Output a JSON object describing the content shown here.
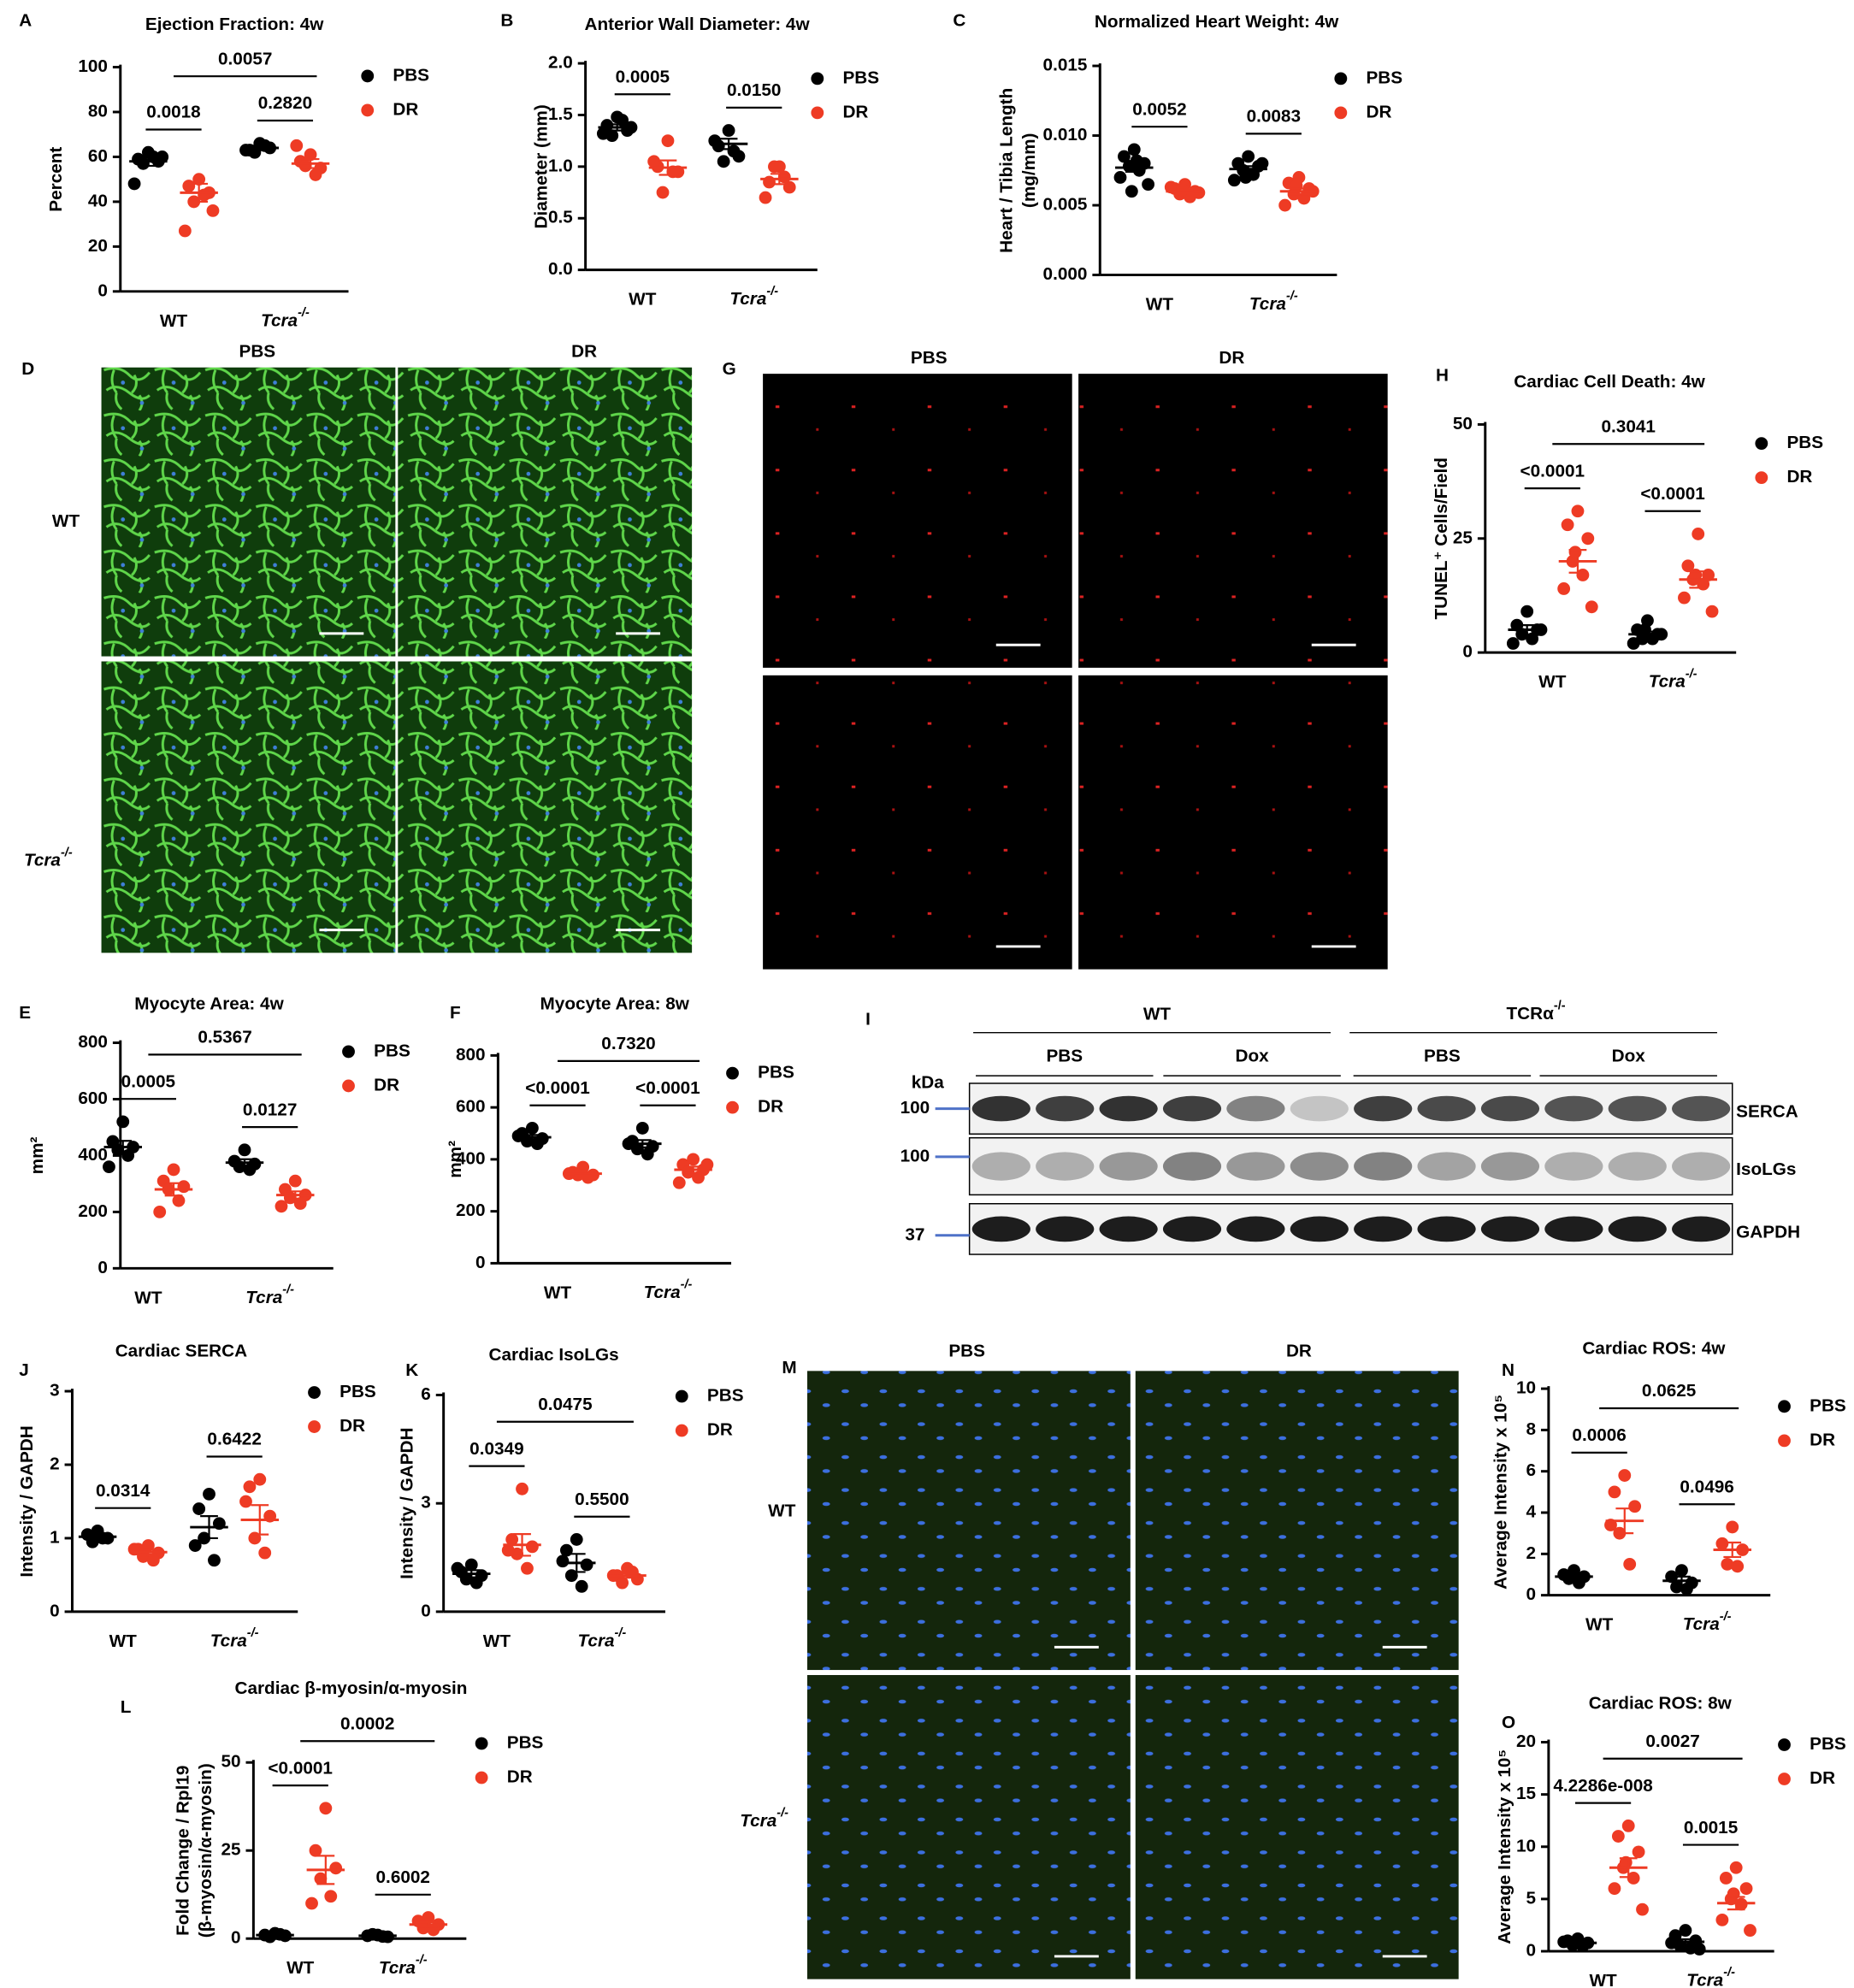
{
  "chart_data": [
    {
      "type": "dotplot",
      "panel": "A",
      "title": "Ejection Fraction: 4w",
      "ylabel": "Percent",
      "categories": [
        "WT",
        "Tcra-/-"
      ],
      "ylim": [
        0,
        100
      ],
      "yticks": [
        0,
        20,
        40,
        60,
        80,
        100
      ],
      "series": [
        {
          "name": "PBS",
          "color": "#000000",
          "values": [
            [
              62,
              59,
              58,
              57,
              60,
              48,
              60
            ],
            [
              66,
              63,
              64,
              62,
              65,
              63
            ]
          ],
          "mean": [
            58,
            64
          ],
          "sem": [
            2,
            1
          ]
        },
        {
          "name": "DR",
          "color": "#ee3b24",
          "values": [
            [
              50,
              47,
              44,
              40,
              43,
              27,
              36
            ],
            [
              61,
              58,
              55,
              56,
              52,
              65
            ]
          ],
          "mean": [
            44,
            57
          ],
          "sem": [
            4,
            2
          ]
        }
      ],
      "annotations": [
        "0.0018",
        "0.2820",
        "0.0057"
      ]
    },
    {
      "type": "dotplot",
      "panel": "B",
      "title": "Anterior Wall Diameter: 4w",
      "ylabel": "Diameter (mm)",
      "categories": [
        "WT",
        "Tcra-/-"
      ],
      "ylim": [
        0,
        2
      ],
      "yticks": [
        {
          "value": 0,
          "label": "0.0"
        },
        0.5,
        {
          "value": 1,
          "label": "1.0"
        },
        1.5,
        {
          "value": 2,
          "label": "2.0"
        }
      ],
      "series": [
        {
          "name": "PBS",
          "color": "#000000",
          "values": [
            [
              1.48,
              1.4,
              1.35,
              1.3,
              1.45,
              1.32,
              1.38
            ],
            [
              1.35,
              1.2,
              1.1,
              1.05,
              1.15,
              1.25
            ]
          ],
          "mean": [
            1.38,
            1.22
          ],
          "sem": [
            0.03,
            0.05
          ]
        },
        {
          "name": "DR",
          "color": "#ee3b24",
          "values": [
            [
              1.25,
              1.0,
              0.95,
              0.75,
              0.95,
              1.05
            ],
            [
              1.0,
              0.85,
              0.8,
              1.0,
              0.9,
              0.7
            ]
          ],
          "mean": [
            0.99,
            0.88
          ],
          "sem": [
            0.07,
            0.05
          ]
        }
      ],
      "annotations": [
        "0.0005",
        "0.0150"
      ]
    },
    {
      "type": "dotplot",
      "panel": "C",
      "title": "Normalized Heart Weight: 4w",
      "ylabel": [
        "Heart / Tibia Length",
        "(mg/mm)"
      ],
      "categories": [
        "WT",
        "Tcra-/-"
      ],
      "ylim": [
        0,
        0.015
      ],
      "yticks": [
        {
          "value": 0,
          "label": "0.000"
        },
        {
          "value": 0.005,
          "label": "0.005"
        },
        {
          "value": 0.01,
          "label": "0.010"
        },
        {
          "value": 0.015,
          "label": "0.015"
        }
      ],
      "series": [
        {
          "name": "PBS",
          "color": "#000000",
          "values": [
            [
              0.009,
              0.0085,
              0.008,
              0.0078,
              0.0075,
              0.007,
              0.0065,
              0.006,
              0.0082
            ],
            [
              0.0085,
              0.008,
              0.0078,
              0.0075,
              0.0072,
              0.0068,
              0.008,
              0.007
            ]
          ],
          "mean": [
            0.0077,
            0.0076
          ],
          "sem": [
            0.0003,
            0.0002
          ]
        },
        {
          "name": "DR",
          "color": "#ee3b24",
          "values": [
            [
              0.0065,
              0.0062,
              0.006,
              0.0058,
              0.0056,
              0.0063,
              0.0059,
              0.0061
            ],
            [
              0.007,
              0.0066,
              0.0062,
              0.0058,
              0.0055,
              0.005,
              0.006,
              0.0064
            ]
          ],
          "mean": [
            0.006,
            0.006
          ],
          "sem": [
            0.0001,
            0.0002
          ]
        }
      ],
      "annotations": [
        "0.0052",
        "0.0083"
      ]
    },
    {
      "type": "dotplot",
      "panel": "H",
      "title": "Cardiac Cell Death: 4w",
      "ylabel": "TUNEL⁺ Cells/Field",
      "categories": [
        "WT",
        "Tcra-/-"
      ],
      "ylim": [
        0,
        50
      ],
      "yticks": [
        0,
        25,
        50
      ],
      "series": [
        {
          "name": "PBS",
          "color": "#000000",
          "values": [
            [
              9,
              6,
              5,
              4,
              3,
              2,
              5
            ],
            [
              7,
              5,
              4,
              3,
              3,
              2,
              4,
              5
            ]
          ],
          "mean": [
            5,
            4
          ],
          "sem": [
            1,
            0.6
          ]
        },
        {
          "name": "DR",
          "color": "#ee3b24",
          "values": [
            [
              31,
              28,
              25,
              20,
              17,
              14,
              10,
              22
            ],
            [
              26,
              19,
              17,
              16,
              15,
              12,
              9,
              17
            ]
          ],
          "mean": [
            20,
            16
          ],
          "sem": [
            2.5,
            1.8
          ]
        }
      ],
      "annotations": [
        "<0.0001",
        "<0.0001",
        "0.3041"
      ]
    },
    {
      "type": "dotplot",
      "panel": "E",
      "title": "Myocyte Area: 4w",
      "ylabel": "mm²",
      "categories": [
        "WT",
        "Tcra-/-"
      ],
      "ylim": [
        0,
        800
      ],
      "yticks": [
        0,
        200,
        400,
        600,
        800
      ],
      "series": [
        {
          "name": "PBS",
          "color": "#000000",
          "values": [
            [
              520,
              450,
              430,
              420,
              400,
              360
            ],
            [
              420,
              380,
              370,
              360,
              350
            ]
          ],
          "mean": [
            430,
            375
          ],
          "sem": [
            22,
            12
          ]
        },
        {
          "name": "DR",
          "color": "#ee3b24",
          "values": [
            [
              350,
              310,
              290,
              280,
              240,
              200
            ],
            [
              310,
              280,
              260,
              250,
              230,
              220
            ]
          ],
          "mean": [
            280,
            260
          ],
          "sem": [
            22,
            13
          ]
        }
      ],
      "annotations": [
        "0.0005",
        "0.0127",
        "0.5367"
      ]
    },
    {
      "type": "dotplot",
      "panel": "F",
      "title": "Myocyte Area: 8w",
      "ylabel": "mm²",
      "categories": [
        "WT",
        "Tcra-/-"
      ],
      "ylim": [
        0,
        800
      ],
      "yticks": [
        0,
        200,
        400,
        600,
        800
      ],
      "series": [
        {
          "name": "PBS",
          "color": "#000000",
          "values": [
            [
              520,
              500,
              480,
              470,
              460,
              490
            ],
            [
              520,
              470,
              450,
              440,
              420,
              460
            ]
          ],
          "mean": [
            485,
            460
          ],
          "sem": [
            9,
            14
          ]
        },
        {
          "name": "DR",
          "color": "#ee3b24",
          "values": [
            [
              370,
              350,
              340,
              340,
              330,
              345
            ],
            [
              400,
              380,
              360,
              350,
              330,
              310,
              380
            ]
          ],
          "mean": [
            345,
            360
          ],
          "sem": [
            6,
            12
          ]
        }
      ],
      "annotations": [
        "<0.0001",
        "<0.0001",
        "0.7320"
      ]
    },
    {
      "type": "dotplot",
      "panel": "J",
      "title": "Cardiac SERCA",
      "ylabel": "Intensity / GAPDH",
      "categories": [
        "WT",
        "Tcra-/-"
      ],
      "ylim": [
        0,
        3
      ],
      "yticks": [
        0,
        1,
        2,
        3
      ],
      "series": [
        {
          "name": "PBS",
          "color": "#000000",
          "values": [
            [
              1.1,
              1.05,
              1.0,
              0.95,
              1.0
            ],
            [
              1.6,
              1.4,
              1.2,
              1.0,
              0.7,
              0.9
            ]
          ],
          "mean": [
            1.02,
            1.15
          ],
          "sem": [
            0.03,
            0.15
          ]
        },
        {
          "name": "DR",
          "color": "#ee3b24",
          "values": [
            [
              0.9,
              0.85,
              0.8,
              0.75,
              0.7,
              0.85
            ],
            [
              1.8,
              1.7,
              1.3,
              1.0,
              0.8,
              1.5
            ]
          ],
          "mean": [
            0.81,
            1.25
          ],
          "sem": [
            0.03,
            0.2
          ]
        }
      ],
      "annotations": [
        "0.0314",
        "0.6422"
      ]
    },
    {
      "type": "dotplot",
      "panel": "K",
      "title": "Cardiac IsoLGs",
      "ylabel": "Intensity / GAPDH",
      "categories": [
        "WT",
        "Tcra-/-"
      ],
      "ylim": [
        0,
        6
      ],
      "yticks": [
        0,
        3,
        6
      ],
      "series": [
        {
          "name": "PBS",
          "color": "#000000",
          "values": [
            [
              1.3,
              1.1,
              1.0,
              0.9,
              0.8,
              1.2
            ],
            [
              2.0,
              1.7,
              1.3,
              1.0,
              0.7,
              1.4
            ]
          ],
          "mean": [
            1.05,
            1.35
          ],
          "sem": [
            0.1,
            0.25
          ]
        },
        {
          "name": "DR",
          "color": "#ee3b24",
          "values": [
            [
              3.4,
              2.0,
              1.8,
              1.6,
              1.2,
              1.7
            ],
            [
              1.2,
              1.0,
              0.9,
              0.8,
              1.1,
              1.0
            ]
          ],
          "mean": [
            1.85,
            1.0
          ],
          "sem": [
            0.3,
            0.06
          ]
        }
      ],
      "annotations": [
        "0.0349",
        "0.5500",
        "0.0475"
      ]
    },
    {
      "type": "dotplot",
      "panel": "L",
      "title": "Cardiac β-myosin/α-myosin",
      "ylabel": [
        "Fold Change / Rpl19",
        "(β-myosin/α-myosin)"
      ],
      "categories": [
        "WT",
        "Tcra-/-"
      ],
      "ylim": [
        0,
        50
      ],
      "yticks": [
        0,
        25,
        50
      ],
      "series": [
        {
          "name": "PBS",
          "color": "#000000",
          "values": [
            [
              1.5,
              1,
              0.8,
              0.5,
              1.2
            ],
            [
              1,
              0.8,
              0.5,
              1.2,
              0.6
            ]
          ],
          "mean": [
            1,
            0.8
          ],
          "sem": [
            0.2,
            0.15
          ]
        },
        {
          "name": "DR",
          "color": "#ee3b24",
          "values": [
            [
              37,
              25,
              20,
              17,
              12,
              10
            ],
            [
              6,
              5,
              4,
              3,
              2.5
            ]
          ],
          "mean": [
            19.5,
            4
          ],
          "sem": [
            4,
            0.7
          ]
        }
      ],
      "annotations": [
        "<0.0001",
        "0.6002",
        "0.0002"
      ]
    },
    {
      "type": "dotplot",
      "panel": "N",
      "title": "Cardiac ROS: 4w",
      "ylabel": "Average Intensity x 10⁵",
      "categories": [
        "WT",
        "Tcra-/-"
      ],
      "ylim": [
        0,
        10
      ],
      "yticks": [
        0,
        2,
        4,
        6,
        8,
        10
      ],
      "series": [
        {
          "name": "PBS",
          "color": "#000000",
          "values": [
            [
              1.2,
              1.0,
              0.9,
              0.8,
              0.6
            ],
            [
              1.2,
              0.9,
              0.6,
              0.4,
              0.3
            ]
          ],
          "mean": [
            0.9,
            0.7
          ],
          "sem": [
            0.1,
            0.2
          ]
        },
        {
          "name": "DR",
          "color": "#ee3b24",
          "values": [
            [
              5.8,
              5.0,
              4.3,
              3.0,
              1.5,
              3.4
            ],
            [
              3.3,
              2.5,
              2.2,
              1.5,
              1.4
            ]
          ],
          "mean": [
            3.6,
            2.2
          ],
          "sem": [
            0.6,
            0.35
          ]
        }
      ],
      "annotations": [
        "0.0006",
        "0.0496",
        "0.0625"
      ]
    },
    {
      "type": "dotplot",
      "panel": "O",
      "title": "Cardiac ROS: 8w",
      "ylabel": "Average Intensity x 10⁵",
      "categories": [
        "WT",
        "Tcra-/-"
      ],
      "ylim": [
        0,
        20
      ],
      "yticks": [
        0,
        5,
        10,
        15,
        20
      ],
      "series": [
        {
          "name": "PBS",
          "color": "#000000",
          "values": [
            [
              1.2,
              1.0,
              0.8,
              0.6,
              0.5,
              0.9
            ],
            [
              2,
              1.5,
              1,
              0.5,
              0.3,
              0.8,
              0.2
            ]
          ],
          "mean": [
            0.8,
            0.9
          ],
          "sem": [
            0.1,
            0.25
          ]
        },
        {
          "name": "DR",
          "color": "#ee3b24",
          "values": [
            [
              12,
              11,
              9.5,
              8,
              7,
              6,
              4,
              8.5
            ],
            [
              8,
              7,
              6,
              5,
              4.5,
              3,
              2,
              5.5
            ]
          ],
          "mean": [
            8,
            4.6
          ],
          "sem": [
            0.9,
            0.6
          ]
        }
      ],
      "annotations": [
        "4.2286e-008",
        "0.0015",
        "0.0027"
      ]
    }
  ],
  "images": [
    {
      "panel": "D",
      "columns": [
        "PBS",
        "DR"
      ],
      "rows": [
        "WT",
        "Tcra-/-"
      ]
    },
    {
      "panel": "G",
      "columns": [
        "PBS",
        "DR"
      ]
    },
    {
      "panel": "M",
      "columns": [
        "PBS",
        "DR"
      ],
      "rows": [
        "WT",
        "Tcra-/-"
      ]
    }
  ],
  "blot": {
    "panel": "I",
    "groups": [
      "WT",
      "TCRα-/-"
    ],
    "treatments": [
      "PBS",
      "Dox",
      "PBS",
      "Dox"
    ],
    "unit": "kDa",
    "markers": [
      100,
      100,
      37
    ],
    "proteins": [
      "SERCA",
      "IsoLGs",
      "GAPDH"
    ]
  }
}
